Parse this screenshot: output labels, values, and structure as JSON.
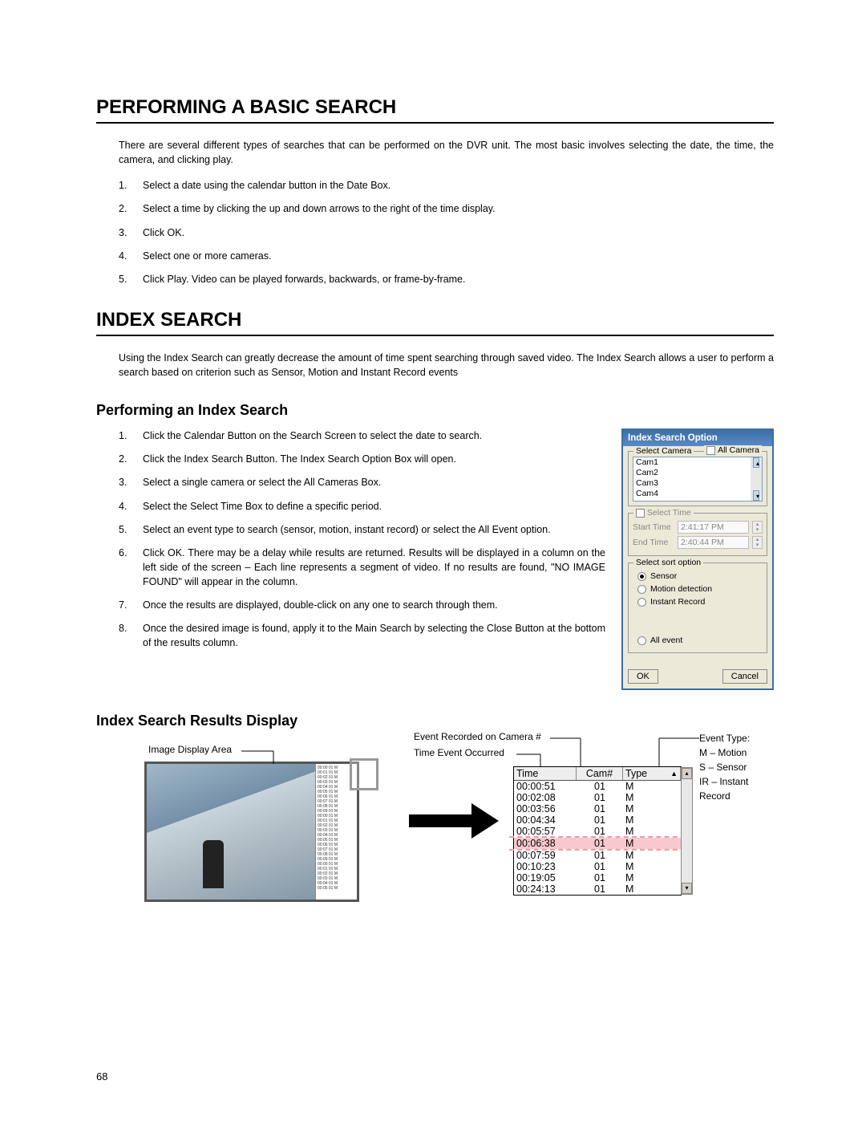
{
  "section1": {
    "title": "PERFORMING A BASIC SEARCH",
    "intro": "There are several different types of searches that can be performed on the DVR unit. The most basic involves selecting the date, the time, the camera, and clicking play.",
    "steps": [
      "Select a date using the calendar button in the Date Box.",
      "Select a time by clicking the up and down arrows to the right of the time display.",
      "Click OK.",
      "Select one or more cameras.",
      "Click Play.  Video can be played forwards, backwards, or frame-by-frame."
    ]
  },
  "section2": {
    "title": "INDEX SEARCH",
    "intro": "Using the Index Search can greatly decrease the amount of time spent searching through saved video. The Index Search allows a user to perform a search based on criterion such as Sensor, Motion and Instant Record events",
    "sub1": {
      "title": "Performing an Index Search",
      "steps": [
        "Click the Calendar Button on the Search Screen to select the date to search.",
        "Click the Index Search Button.  The Index Search Option Box will open.",
        "Select a single camera or select the All Cameras Box.",
        "Select the Select Time Box to define a specific period.",
        "Select an event type to search (sensor, motion, instant record) or select the All Event option.",
        "Click OK.  There may be a delay while results are returned.  Results will be displayed in a column on the left side of the screen – Each line represents a segment of video.  If no results are found, \"NO IMAGE FOUND\" will appear in the column.",
        "Once the results are displayed, double-click on any one to search through them.",
        "Once the desired image is found, apply it to the Main Search by selecting the Close Button at the bottom of the results column."
      ]
    },
    "sub2": {
      "title": "Index Search Results Display"
    }
  },
  "dialog": {
    "title": "Index Search Option",
    "select_camera_label": "Select Camera",
    "all_camera_label": "All Camera",
    "cameras": [
      "Cam1",
      "Cam2",
      "Cam3",
      "Cam4"
    ],
    "select_time_label": "Select Time",
    "start_time_label": "Start Time",
    "start_time_value": "2:41:17 PM",
    "end_time_label": "End Time",
    "end_time_value": "2:40:44 PM",
    "sort_group_label": "Select sort option",
    "opt_sensor": "Sensor",
    "opt_motion": "Motion detection",
    "opt_instant": "Instant Record",
    "opt_all": "All event",
    "ok": "OK",
    "cancel": "Cancel"
  },
  "results": {
    "headers": {
      "time": "Time",
      "cam": "Cam#",
      "type": "Type"
    },
    "rows": [
      {
        "time": "00:00:51",
        "cam": "01",
        "type": "M",
        "hl": false
      },
      {
        "time": "00:02:08",
        "cam": "01",
        "type": "M",
        "hl": false
      },
      {
        "time": "00:03:56",
        "cam": "01",
        "type": "M",
        "hl": false
      },
      {
        "time": "00:04:34",
        "cam": "01",
        "type": "M",
        "hl": false
      },
      {
        "time": "00:05:57",
        "cam": "01",
        "type": "M",
        "hl": false
      },
      {
        "time": "00:06:38",
        "cam": "01",
        "type": "M",
        "hl": true
      },
      {
        "time": "00:07:59",
        "cam": "01",
        "type": "M",
        "hl": false
      },
      {
        "time": "00:10:23",
        "cam": "01",
        "type": "M",
        "hl": false
      },
      {
        "time": "00:19:05",
        "cam": "01",
        "type": "M",
        "hl": false
      },
      {
        "time": "00:24:13",
        "cam": "01",
        "type": "M",
        "hl": false
      }
    ]
  },
  "callouts": {
    "image_display": "Image Display Area",
    "event_camera": "Event Recorded on Camera #",
    "time_event": "Time Event Occurred",
    "event_type_title": "Event Type:",
    "et_m": "M – Motion",
    "et_s": "S – Sensor",
    "et_ir": "IR – Instant Record"
  },
  "page_number": "68"
}
